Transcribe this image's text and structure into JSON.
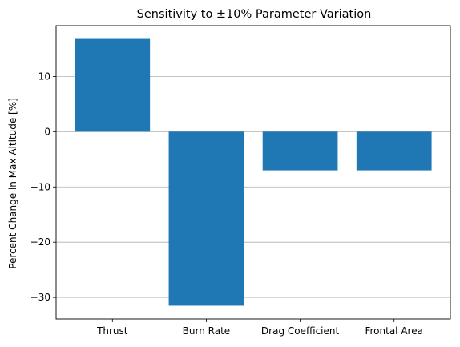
{
  "chart_data": {
    "type": "bar",
    "title": "Sensitivity to ±10% Parameter Variation",
    "xlabel": "",
    "ylabel": "Percent Change in Max Altitude [%]",
    "categories": [
      "Thrust",
      "Burn Rate",
      "Drag Coefficient",
      "Frontal Area"
    ],
    "values": [
      16.8,
      -31.5,
      -7.0,
      -7.0
    ],
    "ylim": [
      -33.9,
      19.2
    ],
    "yticks": [
      10,
      0,
      -10,
      -20,
      -30
    ],
    "grid": "y",
    "bar_color": "#1f77b4"
  }
}
